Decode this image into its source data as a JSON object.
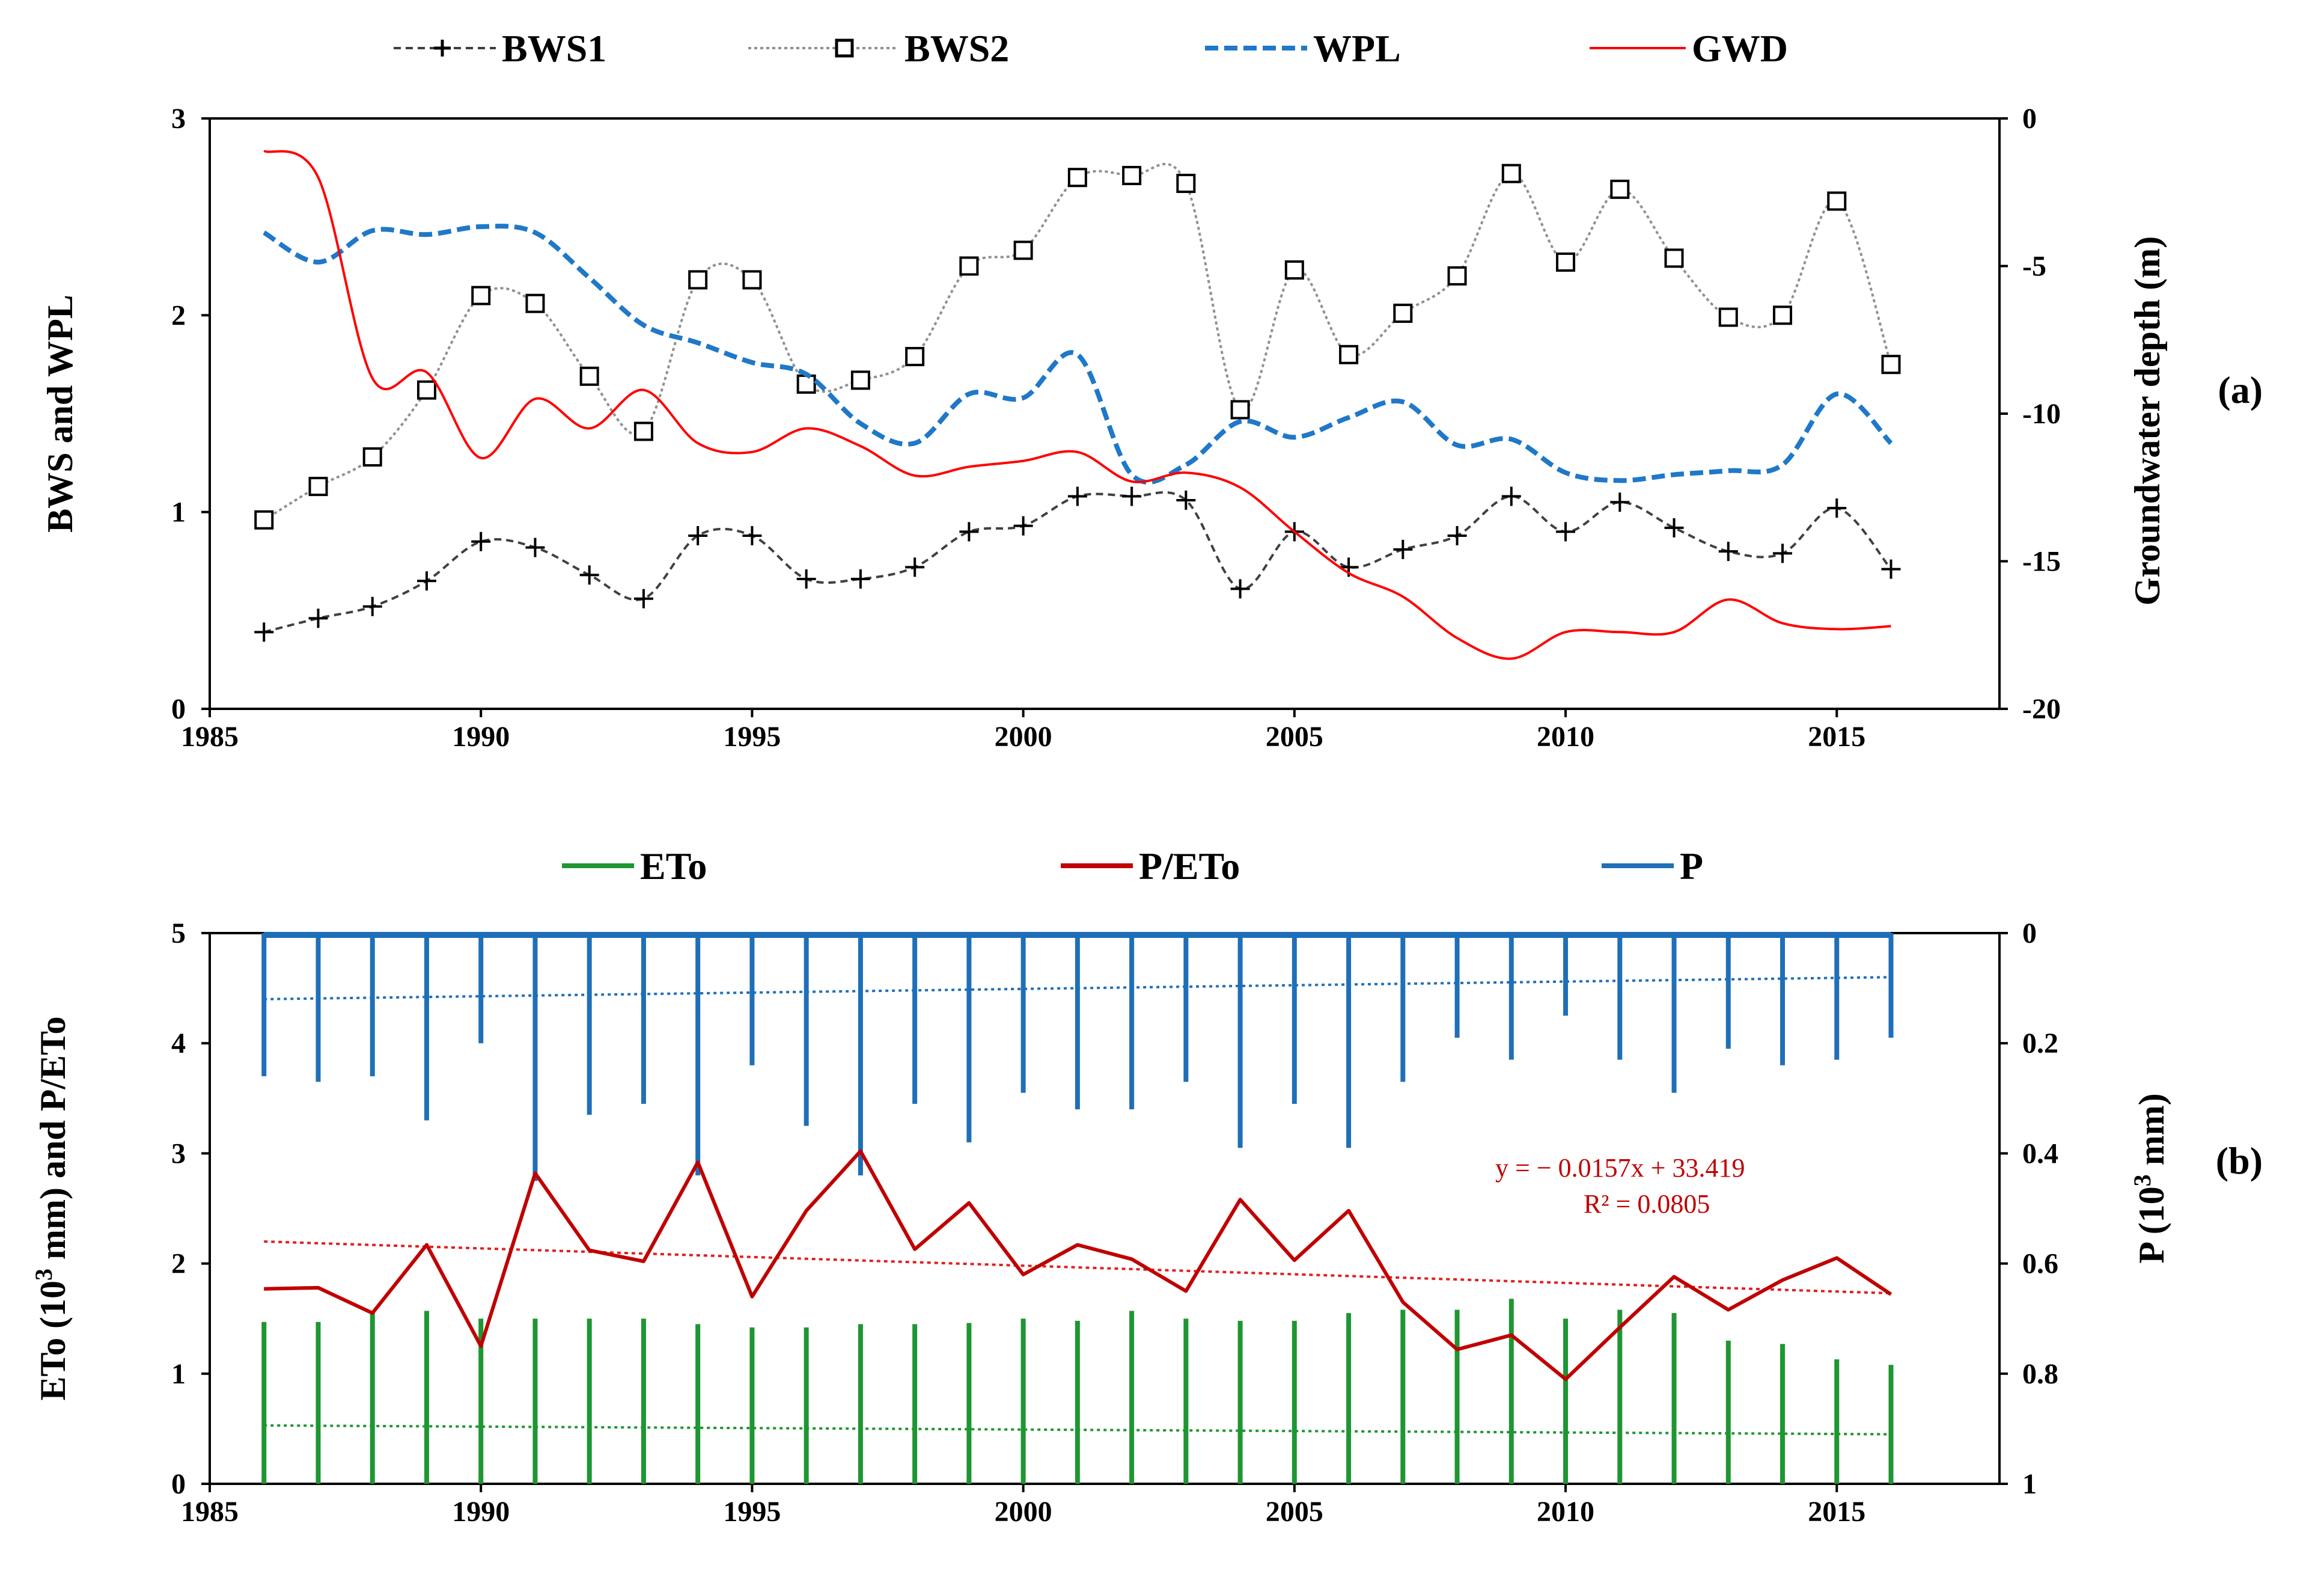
{
  "colors": {
    "bws1": "#404040",
    "bws2": "#909090",
    "wpl": "#1f78c8",
    "gwd": "#ff0000",
    "eto": "#1e9632",
    "pe": "#c00000",
    "p": "#1f6fb8",
    "axis": "#000000"
  },
  "chart_data": [
    {
      "type": "line",
      "panel_label": "(a)",
      "x_ticks": [
        "1985",
        "1990",
        "1995",
        "2000",
        "2005",
        "2010",
        "2015"
      ],
      "xlim": [
        1985,
        2018
      ],
      "ylabel": "BWS and WPL",
      "ylim": [
        0,
        3
      ],
      "y_ticks": [
        "0",
        "1",
        "2",
        "3"
      ],
      "y2label": "Groundwater  depth (m)",
      "y2lim": [
        -20,
        0
      ],
      "y2_ticks": [
        "0",
        "-5",
        "-10",
        "-15",
        "-20"
      ],
      "years": [
        1986,
        1987,
        1988,
        1989,
        1990,
        1991,
        1992,
        1993,
        1994,
        1995,
        1996,
        1997,
        1998,
        1999,
        2000,
        2001,
        2002,
        2003,
        2004,
        2005,
        2006,
        2007,
        2008,
        2009,
        2010,
        2011,
        2012,
        2013,
        2014,
        2015,
        2016
      ],
      "series": [
        {
          "name": "BWS1",
          "axis": "left",
          "values": [
            0.39,
            0.46,
            0.52,
            0.65,
            0.85,
            0.82,
            0.68,
            0.56,
            0.88,
            0.88,
            0.66,
            0.66,
            0.72,
            0.9,
            0.93,
            1.08,
            1.08,
            1.06,
            0.61,
            0.9,
            0.72,
            0.81,
            0.88,
            1.08,
            0.9,
            1.05,
            0.92,
            0.8,
            0.79,
            1.02,
            0.71
          ]
        },
        {
          "name": "BWS2",
          "axis": "left",
          "values": [
            0.96,
            1.13,
            1.28,
            1.62,
            2.1,
            2.06,
            1.69,
            1.41,
            2.18,
            2.18,
            1.65,
            1.67,
            1.79,
            2.25,
            2.33,
            2.7,
            2.71,
            2.67,
            1.52,
            2.23,
            1.8,
            2.01,
            2.2,
            2.72,
            2.27,
            2.64,
            2.29,
            1.99,
            2.0,
            2.58,
            1.75
          ]
        },
        {
          "name": "WPL",
          "axis": "left",
          "values": [
            2.42,
            2.27,
            2.43,
            2.41,
            2.45,
            2.42,
            2.19,
            1.95,
            1.86,
            1.76,
            1.7,
            1.45,
            1.35,
            1.6,
            1.58,
            1.8,
            1.19,
            1.24,
            1.46,
            1.38,
            1.48,
            1.56,
            1.34,
            1.37,
            1.2,
            1.16,
            1.19,
            1.21,
            1.24,
            1.6,
            1.35
          ]
        },
        {
          "name": "GWD",
          "axis": "right",
          "values": [
            -1.1,
            -2.0,
            -8.8,
            -8.6,
            -11.5,
            -9.5,
            -10.5,
            -9.2,
            -11.0,
            -11.3,
            -10.5,
            -11.1,
            -12.1,
            -11.8,
            -11.6,
            -11.3,
            -12.3,
            -12.0,
            -12.5,
            -14.0,
            -15.4,
            -16.2,
            -17.6,
            -18.3,
            -17.4,
            -17.4,
            -17.4,
            -16.3,
            -17.1,
            -17.3,
            -17.2
          ]
        }
      ]
    },
    {
      "type": "bar",
      "panel_label": "(b)",
      "x_ticks": [
        "1985",
        "1990",
        "1995",
        "2000",
        "2005",
        "2010",
        "2015"
      ],
      "xlim": [
        1985,
        2018
      ],
      "ylabel": "ETo (10",
      "ylabel_sup": "3",
      "ylabel_rest": " mm) and P/ETo",
      "ylim": [
        0,
        5
      ],
      "y_ticks": [
        "0",
        "1",
        "2",
        "3",
        "4",
        "5"
      ],
      "y2label": "P (10",
      "y2label_sup": "3",
      "y2label_rest": " mm)",
      "y2lim": [
        1,
        0
      ],
      "y2_ticks": [
        "0",
        "0.2",
        "0.4",
        "0.6",
        "0.8",
        "1"
      ],
      "trend_equation": "y = − 0.0157x   + 33.419",
      "trend_r2": "R² = 0.0805",
      "years": [
        1986,
        1987,
        1988,
        1989,
        1990,
        1991,
        1992,
        1993,
        1994,
        1995,
        1996,
        1997,
        1998,
        1999,
        2000,
        2001,
        2002,
        2003,
        2004,
        2005,
        2006,
        2007,
        2008,
        2009,
        2010,
        2011,
        2012,
        2013,
        2014,
        2015,
        2016
      ],
      "series": [
        {
          "name": "ETo",
          "axis": "left",
          "kind": "bars",
          "values": [
            1.47,
            1.47,
            1.55,
            1.57,
            1.5,
            1.5,
            1.5,
            1.5,
            1.45,
            1.42,
            1.42,
            1.45,
            1.45,
            1.46,
            1.5,
            1.48,
            1.57,
            1.5,
            1.48,
            1.48,
            1.55,
            1.58,
            1.58,
            1.68,
            1.5,
            1.58,
            1.55,
            1.3,
            1.27,
            1.13,
            1.08
          ],
          "trend": [
            0.53,
            0.45
          ]
        },
        {
          "name": "P/ETo",
          "axis": "left",
          "kind": "line",
          "values": [
            1.77,
            1.78,
            1.55,
            2.17,
            1.25,
            2.82,
            2.12,
            2.02,
            2.92,
            1.7,
            2.48,
            3.02,
            2.13,
            2.55,
            1.9,
            2.17,
            2.04,
            1.75,
            2.58,
            2.03,
            2.48,
            1.65,
            1.22,
            1.35,
            0.95,
            1.42,
            1.88,
            1.58,
            1.85,
            2.05,
            1.72
          ],
          "trend": [
            2.2,
            1.73
          ]
        },
        {
          "name": "P",
          "axis": "right",
          "kind": "bars-down",
          "values": [
            0.26,
            0.27,
            0.26,
            0.34,
            0.2,
            0.45,
            0.33,
            0.31,
            0.44,
            0.24,
            0.35,
            0.44,
            0.31,
            0.38,
            0.29,
            0.32,
            0.32,
            0.27,
            0.39,
            0.31,
            0.39,
            0.27,
            0.19,
            0.23,
            0.15,
            0.23,
            0.29,
            0.21,
            0.24,
            0.23,
            0.19
          ],
          "trend": [
            0.12,
            0.08
          ]
        }
      ]
    }
  ]
}
